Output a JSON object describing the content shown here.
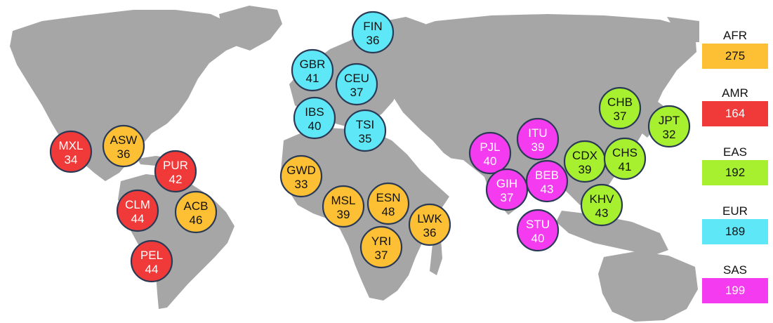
{
  "colors": {
    "AFR": "#fdc035",
    "AMR": "#f03a3a",
    "EAS": "#a6f030",
    "EUR": "#5ee8f7",
    "SAS": "#f53bf0",
    "land": "#a6a6a6",
    "outline": "#2a3a55"
  },
  "legend": [
    {
      "label": "AFR",
      "total": "275",
      "color": "#fdc035",
      "text_color": "#111111"
    },
    {
      "label": "AMR",
      "total": "164",
      "color": "#f03a3a",
      "text_color": "#ffffff"
    },
    {
      "label": "EAS",
      "total": "192",
      "color": "#a6f030",
      "text_color": "#111111"
    },
    {
      "label": "EUR",
      "total": "189",
      "color": "#5ee8f7",
      "text_color": "#111111"
    },
    {
      "label": "SAS",
      "total": "199",
      "color": "#f53bf0",
      "text_color": "#ffffff"
    }
  ],
  "populations": [
    {
      "code": "FIN",
      "count": "36",
      "group": "EUR"
    },
    {
      "code": "GBR",
      "count": "41",
      "group": "EUR"
    },
    {
      "code": "CEU",
      "count": "37",
      "group": "EUR"
    },
    {
      "code": "IBS",
      "count": "40",
      "group": "EUR"
    },
    {
      "code": "TSI",
      "count": "35",
      "group": "EUR"
    },
    {
      "code": "MXL",
      "count": "34",
      "group": "AMR"
    },
    {
      "code": "ASW",
      "count": "36",
      "group": "AFR"
    },
    {
      "code": "PUR",
      "count": "42",
      "group": "AMR"
    },
    {
      "code": "CLM",
      "count": "44",
      "group": "AMR"
    },
    {
      "code": "ACB",
      "count": "46",
      "group": "AFR"
    },
    {
      "code": "PEL",
      "count": "44",
      "group": "AMR"
    },
    {
      "code": "GWD",
      "count": "33",
      "group": "AFR"
    },
    {
      "code": "MSL",
      "count": "39",
      "group": "AFR"
    },
    {
      "code": "ESN",
      "count": "48",
      "group": "AFR"
    },
    {
      "code": "LWK",
      "count": "36",
      "group": "AFR"
    },
    {
      "code": "YRI",
      "count": "37",
      "group": "AFR"
    },
    {
      "code": "PJL",
      "count": "40",
      "group": "SAS"
    },
    {
      "code": "ITU",
      "count": "39",
      "group": "SAS"
    },
    {
      "code": "GIH",
      "count": "37",
      "group": "SAS"
    },
    {
      "code": "BEB",
      "count": "43",
      "group": "SAS"
    },
    {
      "code": "STU",
      "count": "40",
      "group": "SAS"
    },
    {
      "code": "CHB",
      "count": "37",
      "group": "EAS"
    },
    {
      "code": "JPT",
      "count": "32",
      "group": "EAS"
    },
    {
      "code": "CDX",
      "count": "39",
      "group": "EAS"
    },
    {
      "code": "CHS",
      "count": "41",
      "group": "EAS"
    },
    {
      "code": "KHV",
      "count": "43",
      "group": "EAS"
    }
  ]
}
